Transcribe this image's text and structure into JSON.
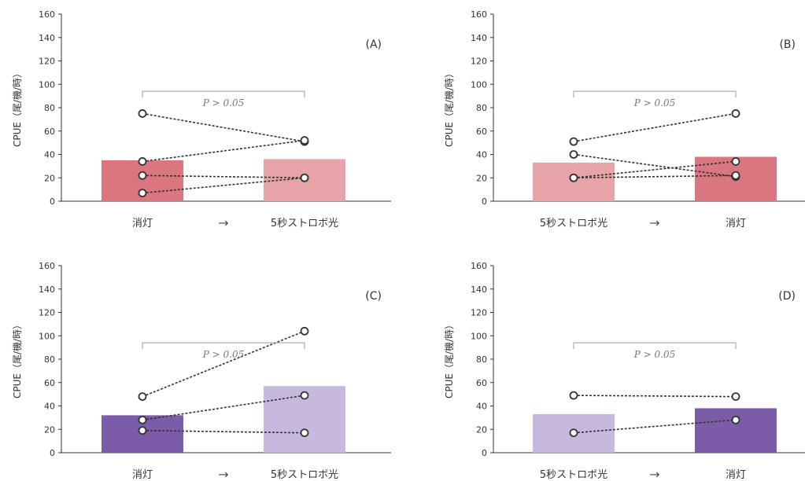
{
  "y_axis_label": "CPUE（尾/機/時）",
  "arrow_symbol": "→",
  "colors": {
    "axis": "#333333",
    "bracket": "#9a9a9a",
    "line": "#333333",
    "marker": "#333333"
  },
  "chart_data": [
    {
      "type": "bar",
      "panel": "(A)",
      "categories": [
        "消灯",
        "5秒ストロボ光"
      ],
      "values": [
        35,
        36
      ],
      "bar_colors": [
        "#d9767f",
        "#e6a3a8"
      ],
      "ylim": [
        0,
        160
      ],
      "yticks": [
        0,
        20,
        40,
        60,
        80,
        100,
        120,
        140,
        160
      ],
      "ylabel": "CPUE（尾/機/時）",
      "significance": "P > 0.05",
      "paired_lines": [
        [
          75,
          51
        ],
        [
          34,
          52
        ],
        [
          22,
          20
        ],
        [
          7,
          20
        ]
      ]
    },
    {
      "type": "bar",
      "panel": "(B)",
      "categories": [
        "5秒ストロボ光",
        "消灯"
      ],
      "values": [
        33,
        38
      ],
      "bar_colors": [
        "#e6a3a8",
        "#d9767f"
      ],
      "ylim": [
        0,
        160
      ],
      "yticks": [
        0,
        20,
        40,
        60,
        80,
        100,
        120,
        140,
        160
      ],
      "ylabel": "CPUE（尾/機/時）",
      "significance": "P > 0.05",
      "paired_lines": [
        [
          51,
          75
        ],
        [
          40,
          21
        ],
        [
          20,
          34
        ],
        [
          20,
          22
        ]
      ]
    },
    {
      "type": "bar",
      "panel": "(C)",
      "categories": [
        "消灯",
        "5秒ストロボ光"
      ],
      "values": [
        32,
        57
      ],
      "bar_colors": [
        "#7c5ba8",
        "#c6b9dd"
      ],
      "ylim": [
        0,
        160
      ],
      "yticks": [
        0,
        20,
        40,
        60,
        80,
        100,
        120,
        140,
        160
      ],
      "ylabel": "CPUE（尾/機/時）",
      "significance": "P > 0.05",
      "paired_lines": [
        [
          48,
          104
        ],
        [
          28,
          49
        ],
        [
          19,
          17
        ]
      ]
    },
    {
      "type": "bar",
      "panel": "(D)",
      "categories": [
        "5秒ストロボ光",
        "消灯"
      ],
      "values": [
        33,
        38
      ],
      "bar_colors": [
        "#c6b9dd",
        "#7c5ba8"
      ],
      "ylim": [
        0,
        160
      ],
      "yticks": [
        0,
        20,
        40,
        60,
        80,
        100,
        120,
        140,
        160
      ],
      "ylabel": "CPUE（尾/機/時）",
      "significance": "P > 0.05",
      "paired_lines": [
        [
          49,
          48
        ],
        [
          17,
          28
        ]
      ]
    }
  ]
}
